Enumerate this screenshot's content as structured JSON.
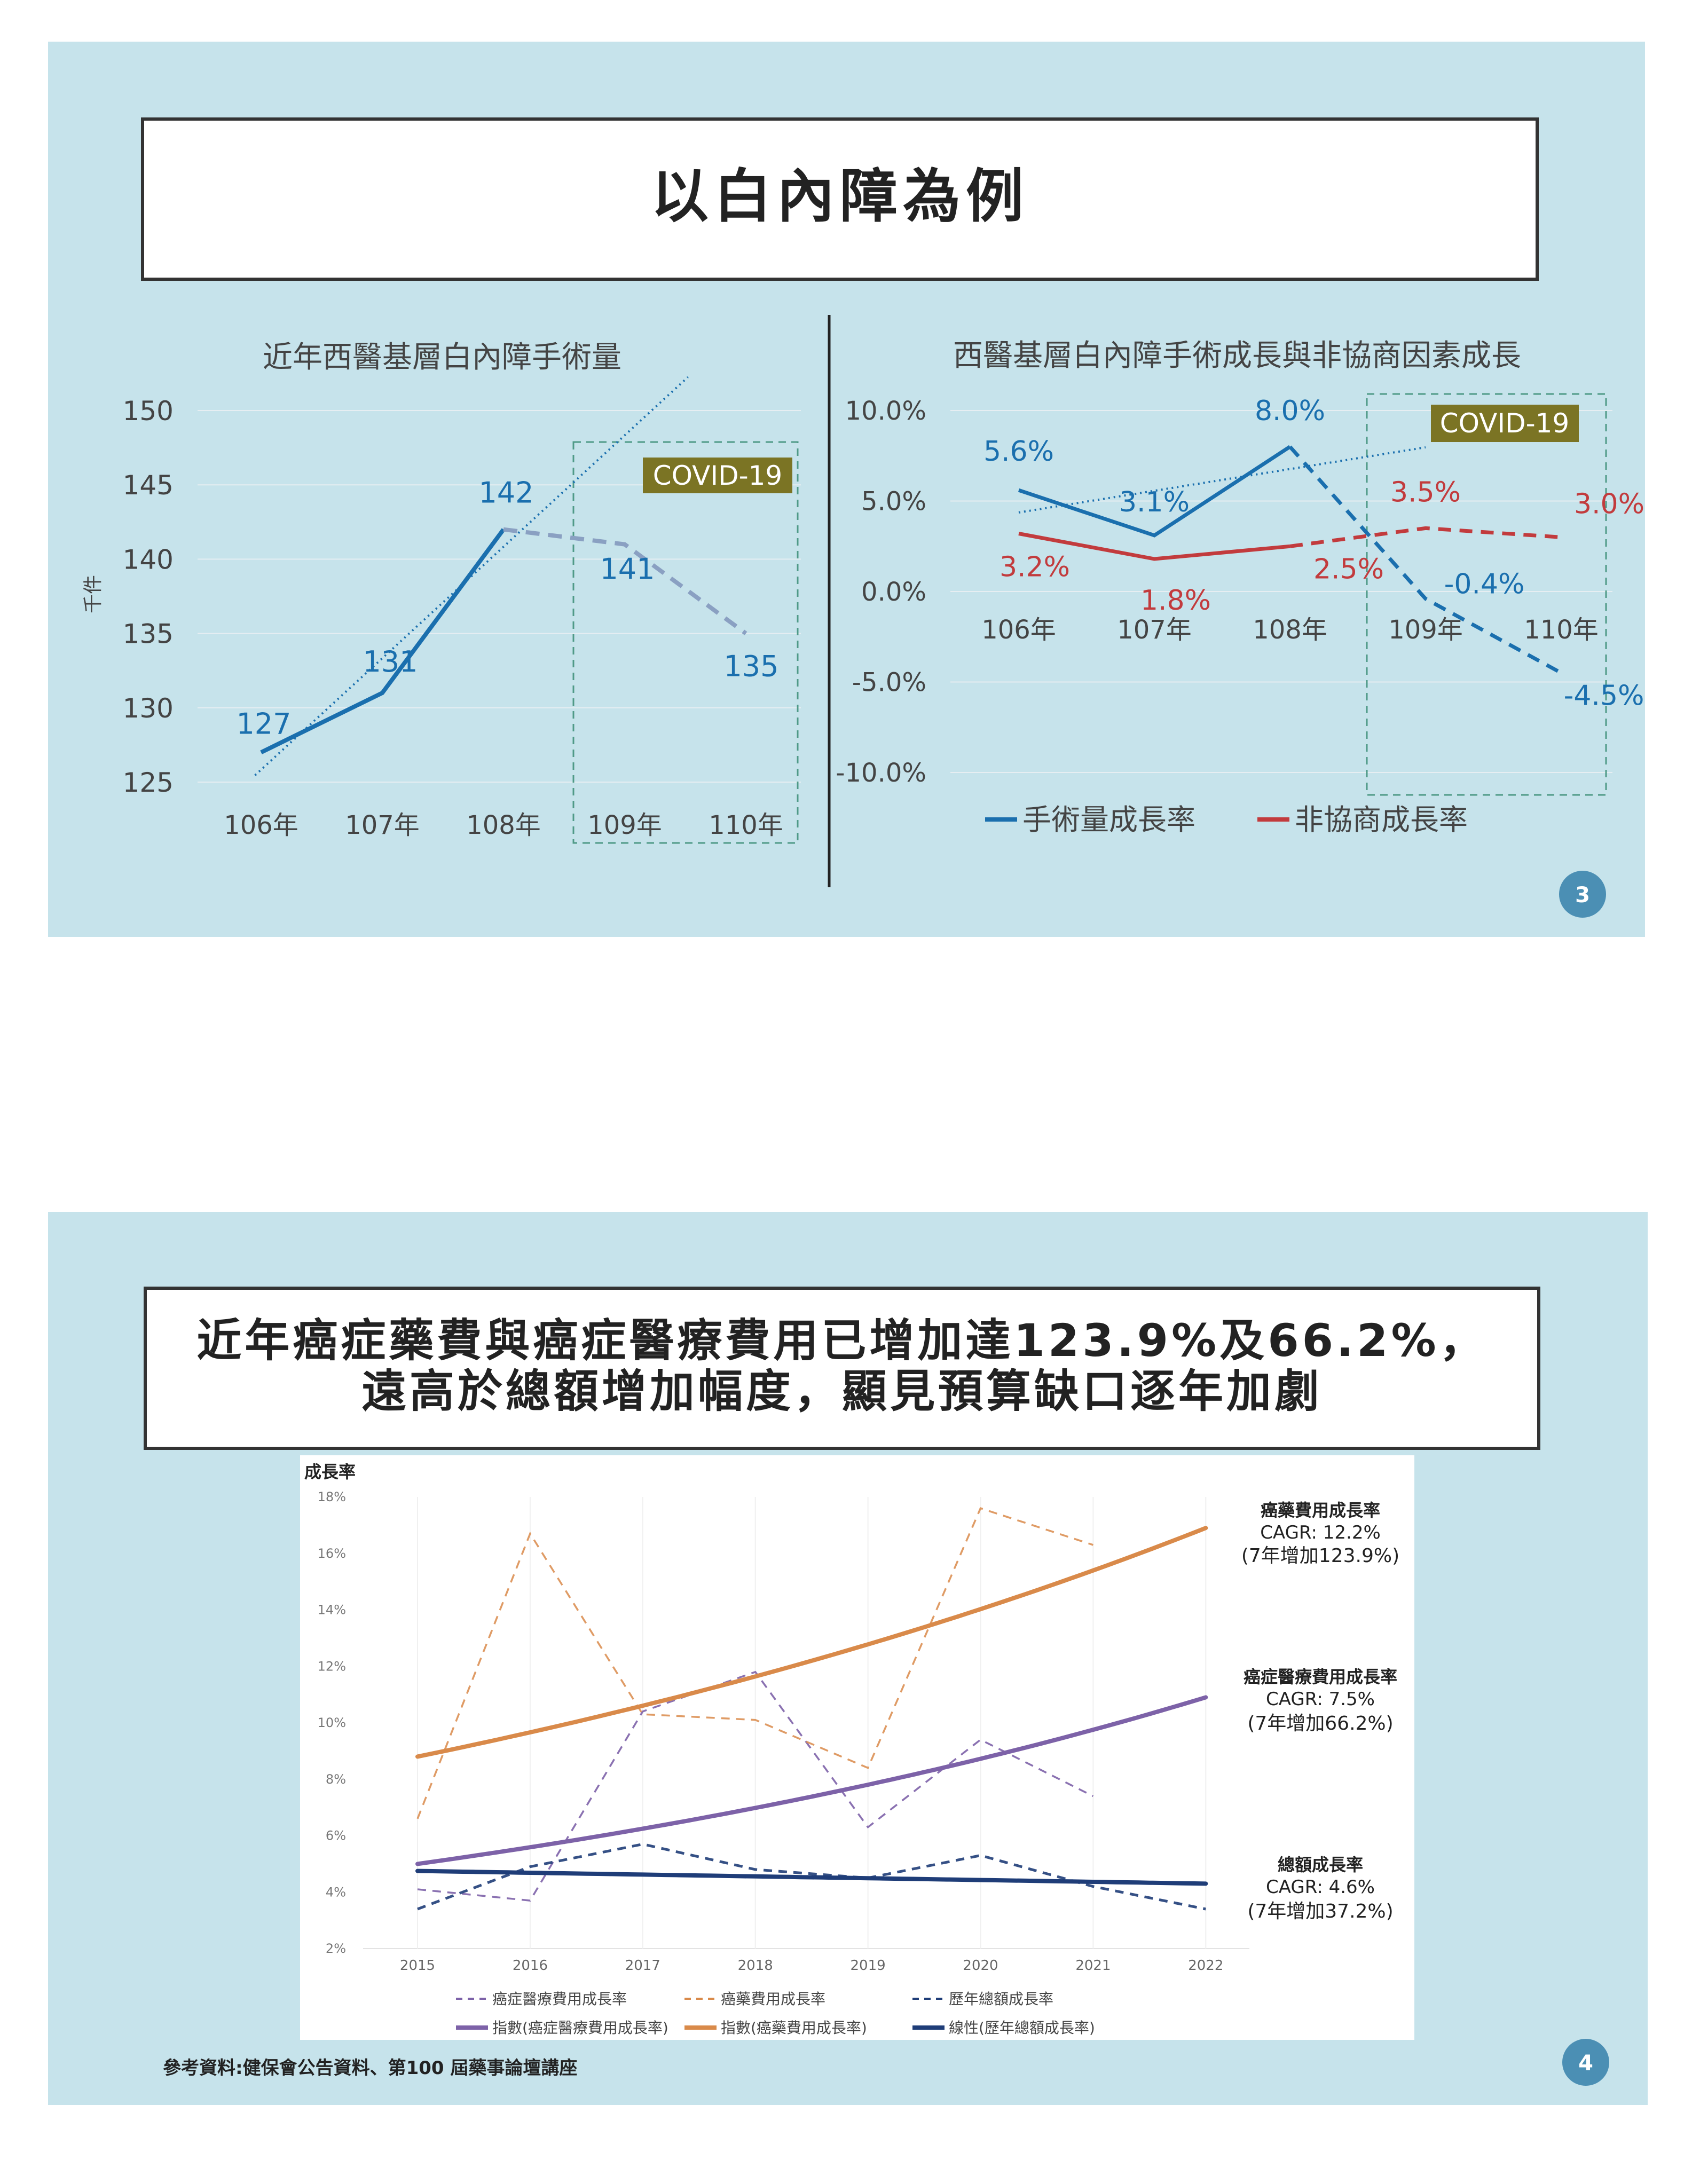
{
  "slide1": {
    "title": "以白內障為例",
    "page_number": "3",
    "covid_label": "COVID-19",
    "left_chart_title": "近年西醫基層白內障手術量",
    "right_chart_title": "西醫基層白內障手術成長與非協商因素成長"
  },
  "slide2": {
    "title_line1": "近年癌症藥費與癌症醫療費用已增加達123.9%及66.2%，",
    "title_line2": "遠高於總額增加幅度，顯見預算缺口逐年加劇",
    "page_number": "4",
    "footer": "參考資料:健保會公告資料、第100 屆藥事論壇講座",
    "annotations": [
      {
        "title": "癌藥費用成長率",
        "cagr": "CAGR: 12.2%",
        "increase": "(7年增加123.9%)"
      },
      {
        "title": "癌症醫療費用成長率",
        "cagr": "CAGR: 7.5%",
        "increase": "(7年增加66.2%)"
      },
      {
        "title": "總額成長率",
        "cagr": "CAGR: 4.6%",
        "increase": "(7年增加37.2%)"
      }
    ]
  },
  "colors": {
    "slide_bg": "#c6e3eb",
    "blue": "#1a6fae",
    "red": "#c23b3d",
    "grey_blue": "#8aa0c2",
    "covid_bg": "#7b7424",
    "covid_box": "#4f9a87",
    "badge": "#4b8fb4",
    "orange": "#d98a4a",
    "purple": "#7d62a8",
    "navy": "#1f3d78"
  },
  "chart_data": [
    {
      "type": "line",
      "title": "近年西醫基層白內障手術量",
      "ylabel": "千件",
      "categories": [
        "106年",
        "107年",
        "108年",
        "109年",
        "110年"
      ],
      "yticks": [
        "150",
        "145",
        "140",
        "135",
        "130",
        "125"
      ],
      "ylim": [
        125,
        150
      ],
      "series": [
        {
          "name": "手術量",
          "values": [
            127,
            131,
            142,
            141,
            135
          ],
          "labels": [
            "127",
            "131",
            "142",
            "141",
            "135"
          ],
          "dashed_from_index": 2
        }
      ],
      "trendline": "linear (dotted, from 106–108年)",
      "annotation": "COVID-19 (109年–110年)"
    },
    {
      "type": "line",
      "title": "西醫基層白內障手術成長與非協商因素成長",
      "categories": [
        "106年",
        "107年",
        "108年",
        "109年",
        "110年"
      ],
      "yticks": [
        "10.0%",
        "5.0%",
        "0.0%",
        "-5.0%",
        "-10.0%"
      ],
      "ylim": [
        -10,
        10
      ],
      "legend": "bottom",
      "series": [
        {
          "name": "手術量成長率",
          "values": [
            5.6,
            3.1,
            8.0,
            -0.4,
            -4.5
          ],
          "labels": [
            "5.6%",
            "3.1%",
            "8.0%",
            "-0.4%",
            "-4.5%"
          ],
          "dashed_from_index": 2
        },
        {
          "name": "非協商成長率",
          "values": [
            3.2,
            1.8,
            2.5,
            3.5,
            3.0
          ],
          "labels": [
            "3.2%",
            "1.8%",
            "2.5%",
            "3.5%",
            "3.0%"
          ],
          "dashed_from_index": 2
        }
      ],
      "trendline": "linear (dotted, 手術量成長率 106–108年)",
      "annotation": "COVID-19 (109年–110年)"
    },
    {
      "type": "line",
      "ylabel": "成長率",
      "x": [
        "2015",
        "2016",
        "2017",
        "2018",
        "2019",
        "2020",
        "2021",
        "2022"
      ],
      "yticks": [
        "18%",
        "16%",
        "14%",
        "12%",
        "10%",
        "8%",
        "6%",
        "4%",
        "2%"
      ],
      "ylim": [
        2,
        18
      ],
      "legend": "bottom",
      "series": [
        {
          "name": "癌症醫療費用成長率",
          "style": "dashed",
          "values": [
            4.1,
            3.7,
            10.4,
            11.8,
            6.3,
            9.4,
            7.4,
            null
          ]
        },
        {
          "name": "癌藥費用成長率",
          "style": "dashed",
          "values": [
            6.6,
            16.7,
            10.3,
            10.1,
            8.4,
            17.6,
            16.3,
            null
          ]
        },
        {
          "name": "歷年總額成長率",
          "style": "dashed",
          "values": [
            3.4,
            4.9,
            5.7,
            4.8,
            4.5,
            5.3,
            4.2,
            3.4
          ]
        },
        {
          "name": "指數(癌症醫療費用成長率)",
          "style": "exp-trend",
          "start": 5.0,
          "end": 10.9
        },
        {
          "name": "指數(癌藥費用成長率)",
          "style": "exp-trend",
          "start": 8.8,
          "end": 16.9
        },
        {
          "name": "線性(歷年總額成長率)",
          "style": "linear-trend",
          "start": 4.75,
          "end": 4.3
        }
      ]
    }
  ]
}
